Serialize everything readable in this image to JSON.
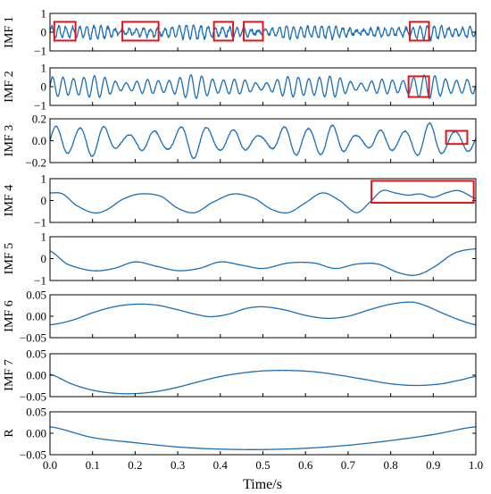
{
  "chart_data": {
    "type": "line",
    "xlabel": "Time/s",
    "xlim": [
      0,
      1.0
    ],
    "xticks": [
      "0.0",
      "0.1",
      "0.2",
      "0.3",
      "0.4",
      "0.5",
      "0.6",
      "0.7",
      "0.8",
      "0.9",
      "1.0"
    ],
    "line_color": "#1a6fb8",
    "highlight_color": "#e0151b",
    "panels": [
      {
        "ylabel": "IMF 1",
        "ylim": [
          -1,
          1
        ],
        "yticks": [
          {
            "v": 1,
            "label": "1"
          },
          {
            "v": 0,
            "label": "0"
          },
          {
            "v": -1,
            "label": "−1"
          }
        ],
        "signal": {
          "kind": "osc",
          "amp": 0.25,
          "freq": 60,
          "noise": 0.18
        },
        "highlights": [
          {
            "x0": 0.01,
            "x1": 0.06,
            "y0": -0.45,
            "y1": 0.55
          },
          {
            "x0": 0.17,
            "x1": 0.255,
            "y0": -0.45,
            "y1": 0.55
          },
          {
            "x0": 0.385,
            "x1": 0.43,
            "y0": -0.45,
            "y1": 0.55
          },
          {
            "x0": 0.455,
            "x1": 0.5,
            "y0": -0.45,
            "y1": 0.55
          },
          {
            "x0": 0.845,
            "x1": 0.89,
            "y0": -0.45,
            "y1": 0.55
          }
        ]
      },
      {
        "ylabel": "IMF 2",
        "ylim": [
          -1,
          1
        ],
        "yticks": [
          {
            "v": 1,
            "label": "1"
          },
          {
            "v": 0,
            "label": "0"
          },
          {
            "v": -1,
            "label": "−1"
          }
        ],
        "signal": {
          "kind": "osc",
          "amp": 0.4,
          "freq": 40,
          "noise": 0.04
        },
        "highlights": [
          {
            "x0": 0.842,
            "x1": 0.89,
            "y0": -0.55,
            "y1": 0.55
          }
        ]
      },
      {
        "ylabel": "IMF 3",
        "ylim": [
          -0.2,
          0.2
        ],
        "yticks": [
          {
            "v": 0.2,
            "label": "0.2"
          },
          {
            "v": 0,
            "label": "0.0"
          },
          {
            "v": -0.2,
            "label": "−0.2"
          }
        ],
        "signal": {
          "kind": "osc",
          "amp": 0.1,
          "freq": 17,
          "noise": 0.01
        },
        "highlights": [
          {
            "x0": 0.93,
            "x1": 0.98,
            "y0": -0.03,
            "y1": 0.09
          }
        ]
      },
      {
        "ylabel": "IMF 4",
        "ylim": [
          -1,
          1
        ],
        "yticks": [
          {
            "v": 1,
            "label": "1"
          },
          {
            "v": 0,
            "label": "0"
          },
          {
            "v": -1,
            "label": "−1"
          }
        ],
        "signal": {
          "kind": "points",
          "x": [
            0,
            0.03,
            0.06,
            0.1,
            0.13,
            0.17,
            0.21,
            0.26,
            0.3,
            0.34,
            0.38,
            0.43,
            0.48,
            0.52,
            0.56,
            0.6,
            0.64,
            0.68,
            0.72,
            0.75,
            0.78,
            0.81,
            0.84,
            0.87,
            0.9,
            0.93,
            0.96,
            1.0
          ],
          "y": [
            0.35,
            0.3,
            -0.2,
            -0.55,
            -0.45,
            0.05,
            0.3,
            0.2,
            -0.35,
            -0.55,
            -0.1,
            0.3,
            0.1,
            -0.4,
            -0.55,
            -0.1,
            0.35,
            0.0,
            -0.55,
            -0.1,
            0.45,
            0.35,
            0.25,
            0.3,
            0.15,
            0.35,
            0.45,
            0.1
          ]
        },
        "highlights": [
          {
            "x0": 0.755,
            "x1": 0.995,
            "y0": -0.1,
            "y1": 0.9
          }
        ]
      },
      {
        "ylabel": "IMF 5",
        "ylim": [
          -1,
          1
        ],
        "yticks": [
          {
            "v": 1,
            "label": "1"
          },
          {
            "v": 0,
            "label": "0"
          },
          {
            "v": -1,
            "label": "−1"
          }
        ],
        "signal": {
          "kind": "points",
          "x": [
            0,
            0.04,
            0.1,
            0.15,
            0.2,
            0.25,
            0.3,
            0.35,
            0.4,
            0.45,
            0.5,
            0.56,
            0.62,
            0.67,
            0.72,
            0.77,
            0.82,
            0.86,
            0.9,
            0.95,
            1.0
          ],
          "y": [
            0.35,
            -0.25,
            -0.55,
            -0.45,
            -0.15,
            -0.35,
            -0.55,
            -0.45,
            -0.15,
            -0.3,
            -0.45,
            -0.2,
            -0.2,
            -0.45,
            -0.25,
            -0.25,
            -0.65,
            -0.75,
            -0.4,
            0.25,
            0.45
          ]
        },
        "highlights": []
      },
      {
        "ylabel": "IMF 6",
        "ylim": [
          -0.05,
          0.05
        ],
        "yticks": [
          {
            "v": 0.05,
            "label": "0.05"
          },
          {
            "v": 0,
            "label": "0.00"
          },
          {
            "v": -0.05,
            "label": "−0.05"
          }
        ],
        "signal": {
          "kind": "points",
          "x": [
            0,
            0.05,
            0.1,
            0.15,
            0.2,
            0.25,
            0.3,
            0.35,
            0.38,
            0.42,
            0.46,
            0.5,
            0.55,
            0.6,
            0.65,
            0.7,
            0.75,
            0.8,
            0.85,
            0.88,
            0.92,
            0.96,
            1.0
          ],
          "y": [
            -0.02,
            -0.01,
            0.008,
            0.022,
            0.028,
            0.026,
            0.015,
            0.003,
            -0.001,
            0.005,
            0.018,
            0.022,
            0.015,
            0.002,
            -0.005,
            0.0,
            0.015,
            0.028,
            0.033,
            0.025,
            0.008,
            -0.008,
            -0.02
          ]
        },
        "highlights": []
      },
      {
        "ylabel": "IMF 7",
        "ylim": [
          -0.05,
          0.05
        ],
        "yticks": [
          {
            "v": 0.05,
            "label": "0.05"
          },
          {
            "v": 0,
            "label": "0.00"
          },
          {
            "v": -0.05,
            "label": "−0.05"
          }
        ],
        "signal": {
          "kind": "points",
          "x": [
            0,
            0.05,
            0.1,
            0.15,
            0.2,
            0.25,
            0.3,
            0.35,
            0.4,
            0.45,
            0.5,
            0.56,
            0.62,
            0.68,
            0.74,
            0.8,
            0.86,
            0.92,
            0.97,
            1.0
          ],
          "y": [
            0.002,
            -0.02,
            -0.035,
            -0.042,
            -0.043,
            -0.038,
            -0.028,
            -0.015,
            -0.003,
            0.005,
            0.01,
            0.011,
            0.008,
            0.0,
            -0.01,
            -0.02,
            -0.024,
            -0.02,
            -0.01,
            -0.003
          ]
        },
        "highlights": []
      },
      {
        "ylabel": "R",
        "ylim": [
          -0.05,
          0.05
        ],
        "yticks": [
          {
            "v": 0.05,
            "label": "0.05"
          },
          {
            "v": 0,
            "label": "0.00"
          },
          {
            "v": -0.05,
            "label": "−0.05"
          }
        ],
        "signal": {
          "kind": "points",
          "x": [
            0,
            0.1,
            0.2,
            0.3,
            0.4,
            0.5,
            0.6,
            0.7,
            0.8,
            0.9,
            1.0
          ],
          "y": [
            0.015,
            -0.01,
            -0.022,
            -0.032,
            -0.037,
            -0.038,
            -0.035,
            -0.028,
            -0.017,
            -0.003,
            0.015
          ]
        },
        "highlights": []
      }
    ]
  }
}
